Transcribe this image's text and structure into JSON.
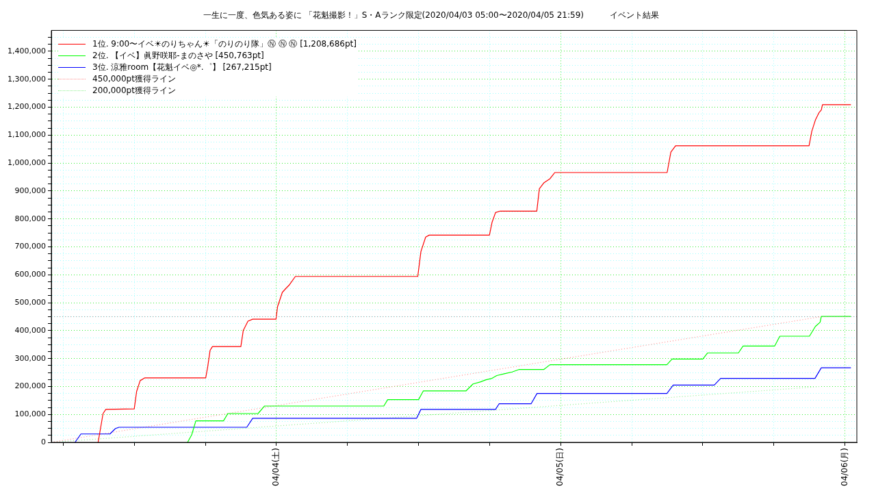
{
  "chart_data": {
    "type": "line",
    "title": "一生に一度、色気ある姿に 「花魁撮影！」S・Aランク限定(2020/04/03 05:00〜2020/04/05 21:59)          イベント結果",
    "xlim": [
      "2020-04-03T05:00",
      "2020-04-06T01:00"
    ],
    "xticks": [
      {
        "value": "2020-04-03T06:00",
        "label": null
      },
      {
        "value": "2020-04-03T12:00",
        "label": null
      },
      {
        "value": "2020-04-03T18:00",
        "label": null
      },
      {
        "value": "2020-04-04",
        "label": "04/04(土)"
      },
      {
        "value": "2020-04-04T06:00",
        "label": null
      },
      {
        "value": "2020-04-04T12:00",
        "label": null
      },
      {
        "value": "2020-04-04T18:00",
        "label": null
      },
      {
        "value": "2020-04-05",
        "label": "04/05(日)"
      },
      {
        "value": "2020-04-05T06:00",
        "label": null
      },
      {
        "value": "2020-04-05T12:00",
        "label": null
      },
      {
        "value": "2020-04-05T18:00",
        "label": null
      },
      {
        "value": "2020-04-06",
        "label": "04/06(月)"
      }
    ],
    "ylim": [
      0,
      1475000
    ],
    "yticks": [
      0,
      {
        "value": 25000,
        "label": null
      },
      {
        "value": 50000,
        "label": null
      },
      {
        "value": 75000,
        "label": null
      },
      {
        "value": 100000,
        "label": "100,000"
      },
      {
        "value": 125000,
        "label": null
      },
      {
        "value": 150000,
        "label": null
      },
      {
        "value": 175000,
        "label": null
      },
      {
        "value": 200000,
        "label": "200,000"
      },
      {
        "value": 225000,
        "label": null
      },
      {
        "value": 250000,
        "label": null
      },
      {
        "value": 275000,
        "label": null
      },
      {
        "value": 300000,
        "label": "300,000"
      },
      {
        "value": 325000,
        "label": null
      },
      {
        "value": 350000,
        "label": null
      },
      {
        "value": 375000,
        "label": null
      },
      {
        "value": 400000,
        "label": "400,000"
      },
      {
        "value": 425000,
        "label": null
      },
      {
        "value": 450000,
        "label": null
      },
      {
        "value": 475000,
        "label": null
      },
      {
        "value": 500000,
        "label": "500,000"
      },
      {
        "value": 525000,
        "label": null
      },
      {
        "value": 550000,
        "label": null
      },
      {
        "value": 575000,
        "label": null
      },
      {
        "value": 600000,
        "label": "600,000"
      },
      {
        "value": 625000,
        "label": null
      },
      {
        "value": 650000,
        "label": null
      },
      {
        "value": 675000,
        "label": null
      },
      {
        "value": 700000,
        "label": "700,000"
      },
      {
        "value": 725000,
        "label": null
      },
      {
        "value": 750000,
        "label": null
      },
      {
        "value": 775000,
        "label": null
      },
      {
        "value": 800000,
        "label": "800,000"
      },
      {
        "value": 825000,
        "label": null
      },
      {
        "value": 850000,
        "label": null
      },
      {
        "value": 875000,
        "label": null
      },
      {
        "value": 900000,
        "label": "900,000"
      },
      {
        "value": 925000,
        "label": null
      },
      {
        "value": 950000,
        "label": null
      },
      {
        "value": 975000,
        "label": null
      },
      {
        "value": 1000000,
        "label": "1,000,000"
      },
      {
        "value": 1025000,
        "label": null
      },
      {
        "value": 1050000,
        "label": null
      },
      {
        "value": 1075000,
        "label": null
      },
      {
        "value": 1100000,
        "label": "1,100,000"
      },
      {
        "value": 1125000,
        "label": null
      },
      {
        "value": 1150000,
        "label": null
      },
      {
        "value": 1175000,
        "label": null
      },
      {
        "value": 1200000,
        "label": "1,200,000"
      },
      {
        "value": 1225000,
        "label": null
      },
      {
        "value": 1250000,
        "label": null
      },
      {
        "value": 1275000,
        "label": null
      },
      {
        "value": 1300000,
        "label": "1,300,000"
      },
      {
        "value": 1325000,
        "label": null
      },
      {
        "value": 1350000,
        "label": null
      },
      {
        "value": 1375000,
        "label": null
      },
      {
        "value": 1400000,
        "label": "1,400,000"
      },
      {
        "value": 1425000,
        "label": null
      },
      {
        "value": 1450000,
        "label": null
      }
    ],
    "grid": true,
    "legend": "top left",
    "ref_lines": [
      {
        "axis": "y",
        "value": 450000,
        "color": "#c09090",
        "line_style": "dotted"
      }
    ],
    "series": [
      {
        "name": "1位. 9:00〜イベ☀のりちゃん☀「のりのり隊」Ⓝ Ⓝ Ⓝ [1,208,686pt]",
        "color": "#ff0000",
        "x": [
          "2020-04-03T08:57",
          "2020-04-03T09:22",
          "2020-04-03T09:36",
          "2020-04-03T12:00",
          "2020-04-03T12:12",
          "2020-04-03T12:30",
          "2020-04-03T12:54",
          "2020-04-03T18:02",
          "2020-04-03T18:12",
          "2020-04-03T18:24",
          "2020-04-03T18:36",
          "2020-04-03T21:00",
          "2020-04-03T21:12",
          "2020-04-03T21:36",
          "2020-04-03T22:00",
          "2020-04-03T23:58",
          "2020-04-04T00:06",
          "2020-04-04T00:30",
          "2020-04-04T00:48",
          "2020-04-04T01:06",
          "2020-04-04T01:36",
          "2020-04-04T11:56",
          "2020-04-04T12:12",
          "2020-04-04T12:36",
          "2020-04-04T12:54",
          "2020-04-04T17:59",
          "2020-04-04T18:12",
          "2020-04-04T18:30",
          "2020-04-04T18:54",
          "2020-04-04T21:59",
          "2020-04-04T22:12",
          "2020-04-04T22:36",
          "2020-04-04T23:06",
          "2020-04-04T23:30",
          "2020-04-05T08:59",
          "2020-04-05T09:18",
          "2020-04-05T09:42",
          "2020-04-05T20:58",
          "2020-04-05T21:12",
          "2020-04-05T21:30",
          "2020-04-05T21:48",
          "2020-04-05T22:00",
          "2020-04-05T22:06",
          "2020-04-06T00:30"
        ],
        "values": [
          0,
          103000,
          118000,
          120000,
          182000,
          221000,
          231000,
          231000,
          270000,
          329000,
          343000,
          343000,
          400000,
          434000,
          441000,
          441000,
          486000,
          537000,
          551000,
          564000,
          594000,
          594000,
          683000,
          735000,
          742000,
          742000,
          787000,
          823000,
          828000,
          828000,
          908000,
          930000,
          944000,
          966000,
          966000,
          1039000,
          1062000,
          1062000,
          1114000,
          1154000,
          1180000,
          1190000,
          1209000,
          1209000
        ]
      },
      {
        "name": "2位. 【イベ】眞野咲耶-まのさや [450,763pt]",
        "color": "#00ff00",
        "x": [
          "2020-04-03T16:30",
          "2020-04-03T16:51",
          "2020-04-03T17:12",
          "2020-04-03T19:32",
          "2020-04-03T19:54",
          "2020-04-03T22:27",
          "2020-04-03T23:00",
          "2020-04-04T09:04",
          "2020-04-04T09:24",
          "2020-04-04T12:00",
          "2020-04-04T12:24",
          "2020-04-04T16:00",
          "2020-04-04T16:36",
          "2020-04-04T17:12",
          "2020-04-04T17:42",
          "2020-04-04T18:12",
          "2020-04-04T18:36",
          "2020-04-04T19:18",
          "2020-04-04T19:54",
          "2020-04-04T20:30",
          "2020-04-04T22:35",
          "2020-04-04T23:06",
          "2020-04-05T08:58",
          "2020-04-05T09:24",
          "2020-04-05T12:00",
          "2020-04-05T12:24",
          "2020-04-05T15:00",
          "2020-04-05T15:24",
          "2020-04-05T18:04",
          "2020-04-05T18:30",
          "2020-04-05T21:00",
          "2020-04-05T21:30",
          "2020-04-05T21:54",
          "2020-04-05T22:00",
          "2020-04-06T00:30"
        ],
        "values": [
          0,
          27000,
          77000,
          77000,
          103000,
          103000,
          130000,
          130000,
          153000,
          153000,
          184000,
          184000,
          209000,
          216000,
          224000,
          229000,
          239000,
          246000,
          252000,
          261000,
          261000,
          278000,
          278000,
          298000,
          298000,
          320000,
          320000,
          345000,
          345000,
          380000,
          380000,
          415000,
          430000,
          451000,
          451000
        ]
      },
      {
        "name": "3位. 涼雅room【花魁イベ◎*.゜】 [267,215pt]",
        "color": "#0000ff",
        "x": [
          "2020-04-03T07:00",
          "2020-04-03T07:30",
          "2020-04-03T09:57",
          "2020-04-03T10:24",
          "2020-04-03T10:42",
          "2020-04-03T21:30",
          "2020-04-03T22:00",
          "2020-04-04T11:50",
          "2020-04-04T12:12",
          "2020-04-04T18:30",
          "2020-04-04T18:48",
          "2020-04-04T21:30",
          "2020-04-04T22:00",
          "2020-04-05T08:58",
          "2020-04-05T09:30",
          "2020-04-05T12:58",
          "2020-04-05T13:30",
          "2020-04-05T21:28",
          "2020-04-05T22:00",
          "2020-04-06T00:30"
        ],
        "values": [
          0,
          30000,
          30000,
          49000,
          54000,
          54000,
          86000,
          86000,
          118000,
          118000,
          138000,
          138000,
          175000,
          175000,
          205000,
          205000,
          229000,
          229000,
          267000,
          267000
        ]
      },
      {
        "name": "450,000pt獲得ライン",
        "color": "#ff9090",
        "line_style": "dotted",
        "x": [
          "2020-04-03T05:00",
          "2020-04-05T21:59"
        ],
        "values": [
          0,
          450000
        ]
      },
      {
        "name": "200,000pt獲得ライン",
        "color": "#90f090",
        "line_style": "dotted",
        "x": [
          "2020-04-03T05:00",
          "2020-04-05T21:59"
        ],
        "values": [
          0,
          200000
        ]
      }
    ]
  }
}
